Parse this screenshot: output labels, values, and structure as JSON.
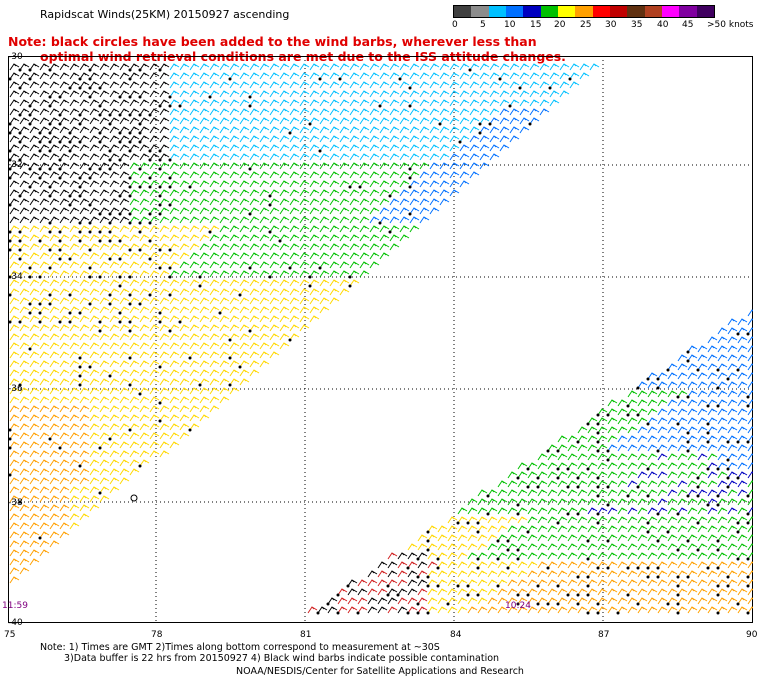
{
  "header": {
    "title": "Rapidscat Winds(25KM) 20150927 ascending",
    "note_line1": "Note: black circles have been added to the wind barbs, wherever less than",
    "note_line2": "optimal wind retrieval conditions are met due to the ISS attitude changes."
  },
  "legend": {
    "labels": [
      "0",
      "5",
      "10",
      "15",
      "20",
      "25",
      "30",
      "35",
      "40",
      "45",
      ">50 knots"
    ],
    "colors": [
      "#404040",
      "#8c8c8c",
      "#00c0ff",
      "#0070ff",
      "#0000c0",
      "#00c000",
      "#ffff00",
      "#ffa000",
      "#ff0000",
      "#c00000",
      "#603010",
      "#b04020",
      "#ff00ff",
      "#8000a0",
      "#400060"
    ]
  },
  "map": {
    "lat_labels": [
      "-30",
      "-32",
      "-34",
      "-36",
      "-38",
      "-40"
    ],
    "lon_labels": [
      "75",
      "78",
      "81",
      "84",
      "87",
      "90"
    ],
    "time_left": "11:59",
    "time_right": "10:24"
  },
  "footer": {
    "note_line1": "Note: 1) Times are GMT 2)Times along bottom correspond to measurement at ~30S",
    "note_line2": "3)Data buffer is 22 hrs from 20150927 4) Black wind barbs indicate possible contamination",
    "credit": "NOAA/NESDIS/Center for Satellite Applications and Research"
  }
}
